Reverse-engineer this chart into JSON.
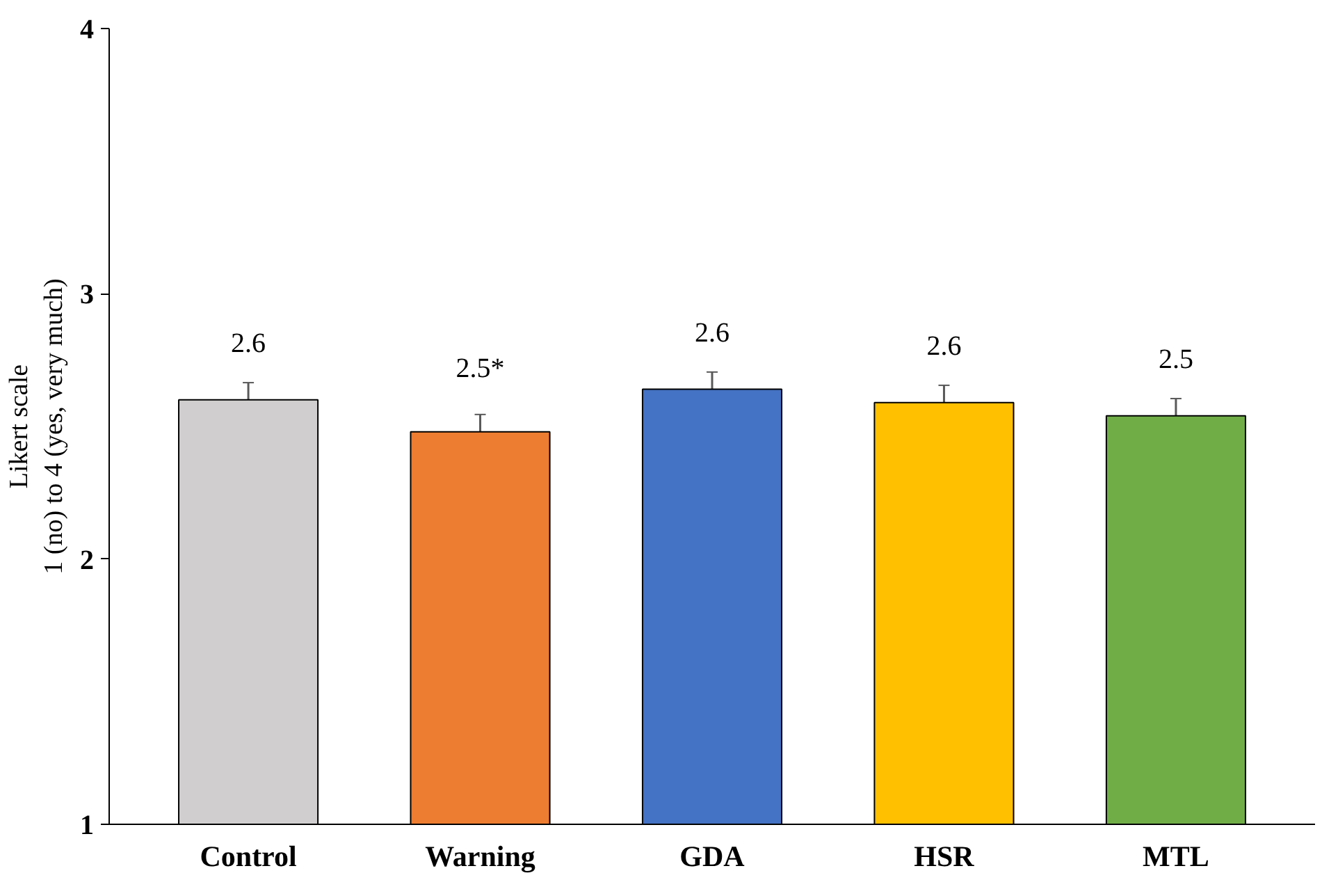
{
  "chart_data": {
    "type": "bar",
    "ylabel": "Likert scale\n1 (no) to 4 (yes, very much)",
    "categories": [
      "Control",
      "Warning",
      "GDA",
      "HSR",
      "MTL"
    ],
    "values": [
      2.6,
      2.48,
      2.64,
      2.59,
      2.54
    ],
    "colors": [
      "#d0cece",
      "#ed7d31",
      "#4472c4",
      "#ffc000",
      "#70ad47"
    ],
    "errors": [
      0.065,
      0.065,
      0.065,
      0.065,
      0.065
    ],
    "value_labels": [
      "2.6",
      "2.5*",
      "2.6",
      "2.6",
      "2.5"
    ],
    "ylim": [
      1,
      4
    ],
    "yticks": [
      1,
      2,
      3,
      4
    ],
    "grid": false
  }
}
